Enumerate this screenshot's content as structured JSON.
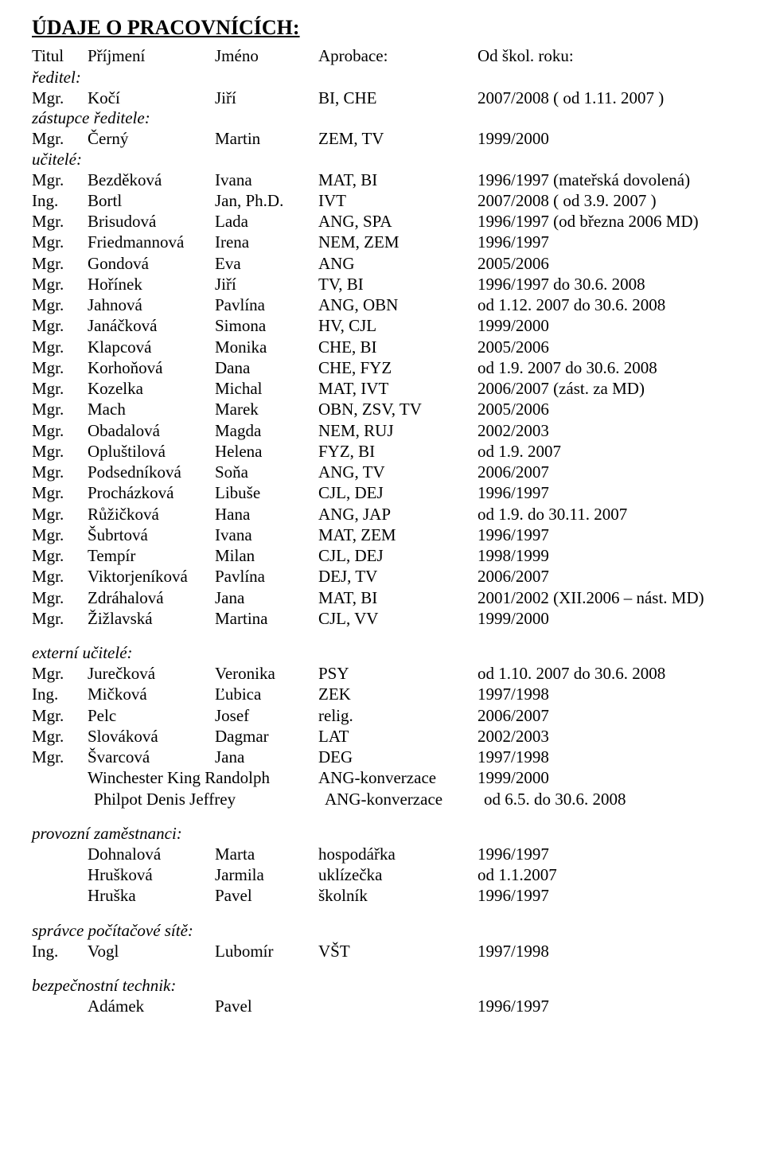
{
  "title": "ÚDAJE O PRACOVNÍCÍCH:",
  "header": {
    "c1": "Titul",
    "c2": "Příjmení",
    "c3": "Jméno",
    "c4": "Aprobace:",
    "c5": "Od škol. roku:"
  },
  "sections": {
    "reditel": "ředitel:",
    "zastupce": "zástupce ředitele:",
    "ucitele": "učitelé:",
    "externi": "externí učitelé:",
    "provozni": "provozní zaměstnanci:",
    "spravce": "správce počítačové sítě:",
    "technik": "bezpečnostní technik:"
  },
  "staff": {
    "reditel": [
      {
        "t": "Mgr.",
        "p": "Kočí",
        "j": "Jiří",
        "a": "BI, CHE",
        "o": "2007/2008 ( od 1.11. 2007 )"
      }
    ],
    "zastupce": [
      {
        "t": "Mgr.",
        "p": "Černý",
        "j": "Martin",
        "a": "ZEM, TV",
        "o": "1999/2000"
      }
    ],
    "ucitele": [
      {
        "t": "Mgr.",
        "p": "Bezděková",
        "j": "Ivana",
        "a": "MAT, BI",
        "o": "1996/1997 (mateřská dovolená)"
      },
      {
        "t": "Ing.",
        "p": "Bortl",
        "j": "Jan, Ph.D.",
        "a": "IVT",
        "o": "2007/2008 ( od 3.9. 2007 )"
      },
      {
        "t": "Mgr.",
        "p": "Brisudová",
        "j": "Lada",
        "a": "ANG, SPA",
        "o": "1996/1997 (od března 2006 MD)"
      },
      {
        "t": "Mgr.",
        "p": "Friedmannová",
        "j": "Irena",
        "a": "NEM, ZEM",
        "o": "1996/1997"
      },
      {
        "t": "Mgr.",
        "p": "Gondová",
        "j": "Eva",
        "a": "ANG",
        "o": "2005/2006"
      },
      {
        "t": "Mgr.",
        "p": "Hořínek",
        "j": "Jiří",
        "a": "TV, BI",
        "o": "1996/1997 do 30.6. 2008"
      },
      {
        "t": "Mgr.",
        "p": "Jahnová",
        "j": "Pavlína",
        "a": "ANG, OBN",
        "o": "od 1.12. 2007 do 30.6. 2008"
      },
      {
        "t": "Mgr.",
        "p": "Janáčková",
        "j": "Simona",
        "a": "HV, CJL",
        "o": "1999/2000"
      },
      {
        "t": "Mgr.",
        "p": "Klapcová",
        "j": "Monika",
        "a": "CHE, BI",
        "o": "2005/2006"
      },
      {
        "t": "Mgr.",
        "p": "Korhoňová",
        "j": "Dana",
        "a": "CHE, FYZ",
        "o": "od 1.9. 2007 do 30.6. 2008"
      },
      {
        "t": "Mgr.",
        "p": "Kozelka",
        "j": "Michal",
        "a": "MAT, IVT",
        "o": "2006/2007 (zást. za MD)"
      },
      {
        "t": "Mgr.",
        "p": "Mach",
        "j": "Marek",
        "a": "OBN, ZSV, TV",
        "o": "2005/2006"
      },
      {
        "t": "Mgr.",
        "p": "Obadalová",
        "j": "Magda",
        "a": "NEM, RUJ",
        "o": "2002/2003"
      },
      {
        "t": "Mgr.",
        "p": "Opluštilová",
        "j": "Helena",
        "a": "FYZ, BI",
        "o": "od 1.9. 2007"
      },
      {
        "t": "Mgr.",
        "p": "Podsedníková",
        "j": "Soňa",
        "a": "ANG, TV",
        "o": "2006/2007"
      },
      {
        "t": "Mgr.",
        "p": "Procházková",
        "j": "Libuše",
        "a": "CJL, DEJ",
        "o": "1996/1997"
      },
      {
        "t": "Mgr.",
        "p": "Růžičková",
        "j": "Hana",
        "a": "ANG, JAP",
        "o": "od 1.9. do 30.11. 2007"
      },
      {
        "t": "Mgr.",
        "p": "Šubrtová",
        "j": "Ivana",
        "a": "MAT, ZEM",
        "o": "1996/1997"
      },
      {
        "t": "Mgr.",
        "p": "Tempír",
        "j": "Milan",
        "a": "CJL, DEJ",
        "o": "1998/1999"
      },
      {
        "t": "Mgr.",
        "p": "Viktorjeníková",
        "j": "Pavlína",
        "a": "DEJ, TV",
        "o": "2006/2007"
      },
      {
        "t": "Mgr.",
        "p": "Zdráhalová",
        "j": "Jana",
        "a": "MAT, BI",
        "o": "2001/2002  (XII.2006 – nást. MD)"
      },
      {
        "t": "Mgr.",
        "p": "Žižlavská",
        "j": "Martina",
        "a": "CJL, VV",
        "o": "1999/2000"
      }
    ],
    "externi": [
      {
        "t": "Mgr.",
        "p": "Jurečková",
        "j": "Veronika",
        "a": "PSY",
        "o": "od 1.10. 2007 do 30.6. 2008"
      },
      {
        "t": "Ing.",
        "p": "Mičková",
        "j": "Ľubica",
        "a": "ZEK",
        "o": "1997/1998"
      },
      {
        "t": "Mgr.",
        "p": "Pelc",
        "j": "Josef",
        "a": "relig.",
        "o": "2006/2007"
      },
      {
        "t": "Mgr.",
        "p": "Slováková",
        "j": "Dagmar",
        "a": "LAT",
        "o": "2002/2003"
      },
      {
        "t": "Mgr.",
        "p": "Švarcová",
        "j": "Jana",
        "a": "DEG",
        "o": "1997/1998"
      }
    ],
    "externi_extra": [
      {
        "name": "Winchester King Randolph",
        "a": "ANG-konverzace",
        "o": "1999/2000"
      },
      {
        "name": "Philpot Denis Jeffrey",
        "a": "ANG-konverzace",
        "o": "od 6.5. do 30.6. 2008"
      }
    ],
    "provozni": [
      {
        "p": "Dohnalová",
        "j": "Marta",
        "a": "hospodářka",
        "o": "1996/1997"
      },
      {
        "p": "Hrušková",
        "j": "Jarmila",
        "a": "uklízečka",
        "o": "od 1.1.2007"
      },
      {
        "p": "Hruška",
        "j": "Pavel",
        "a": "školník",
        "o": "1996/1997"
      }
    ],
    "spravce": [
      {
        "t": "Ing.",
        "p": "Vogl",
        "j": "Lubomír",
        "a": "VŠT",
        "o": "1997/1998"
      }
    ],
    "technik": [
      {
        "p": "Adámek",
        "j": "Pavel",
        "a": "",
        "o": "1996/1997"
      }
    ]
  }
}
